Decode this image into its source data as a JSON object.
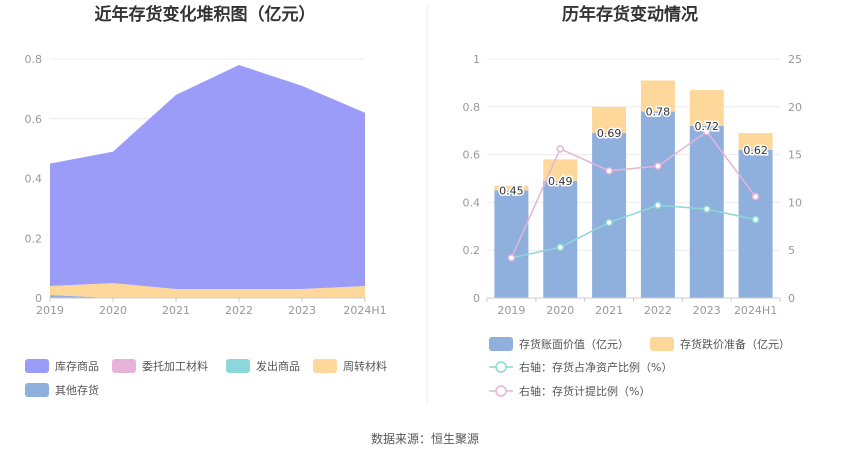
{
  "source_text": "数据来源：恒生聚源",
  "chart_data": [
    {
      "type": "area",
      "stacked": true,
      "title": "近年存货变化堆积图（亿元）",
      "categories": [
        "2019",
        "2020",
        "2021",
        "2022",
        "2023",
        "2024H1"
      ],
      "y_ticks": [
        "0",
        "0.2",
        "0.4",
        "0.6",
        "0.8"
      ],
      "ylim": [
        0,
        0.8
      ],
      "grid": true,
      "legend_position": "bottom",
      "series": [
        {
          "name": "其他存货",
          "color": "#8fb0dd",
          "values": [
            0.01,
            0.0,
            0.0,
            0.0,
            0.0,
            0.0
          ]
        },
        {
          "name": "发出商品",
          "color": "#8cd7d9",
          "values": [
            0.0,
            0.0,
            0.0,
            0.0,
            0.0,
            0.0
          ]
        },
        {
          "name": "委托加工材料",
          "color": "#e7b3d8",
          "values": [
            0.0,
            0.0,
            0.0,
            0.0,
            0.0,
            0.0
          ]
        },
        {
          "name": "周转材料",
          "color": "#fdd89a",
          "values": [
            0.03,
            0.05,
            0.03,
            0.03,
            0.03,
            0.04
          ]
        },
        {
          "name": "库存商品",
          "color": "#9a9cf7",
          "values": [
            0.41,
            0.44,
            0.65,
            0.75,
            0.68,
            0.58
          ]
        }
      ],
      "legend_order": [
        "库存商品",
        "委托加工材料",
        "发出商品",
        "周转材料",
        "其他存货"
      ]
    },
    {
      "type": "bar",
      "stacked": true,
      "title": "历年存货变动情况",
      "categories": [
        "2019",
        "2020",
        "2021",
        "2022",
        "2023",
        "2024H1"
      ],
      "y_left_ticks": [
        "0",
        "0.2",
        "0.4",
        "0.6",
        "0.8",
        "1"
      ],
      "y_right_ticks": [
        "0",
        "5",
        "10",
        "15",
        "20",
        "25"
      ],
      "ylim_left": [
        0,
        1
      ],
      "ylim_right": [
        0,
        25
      ],
      "legend_position": "bottom",
      "bars": [
        {
          "name": "存货账面价值（亿元）",
          "color": "#8fb0dd",
          "values": [
            0.45,
            0.49,
            0.69,
            0.78,
            0.72,
            0.62
          ],
          "labels": [
            "0.45",
            "0.49",
            "0.69",
            "0.78",
            "0.72",
            "0.62"
          ]
        },
        {
          "name": "存货跌价准备（亿元）",
          "color": "#fdd89a",
          "values": [
            0.02,
            0.09,
            0.11,
            0.13,
            0.15,
            0.07
          ]
        }
      ],
      "lines": [
        {
          "name": "右轴：存货占净资产比例（%）",
          "color": "#8cd7d9",
          "axis": "right",
          "values": [
            4.2,
            5.3,
            7.9,
            9.7,
            9.3,
            8.2
          ]
        },
        {
          "name": "右轴：存货计提比例（%）",
          "color": "#e7b3d8",
          "axis": "right",
          "values": [
            4.2,
            15.6,
            13.3,
            13.8,
            17.4,
            10.6
          ]
        }
      ]
    }
  ]
}
